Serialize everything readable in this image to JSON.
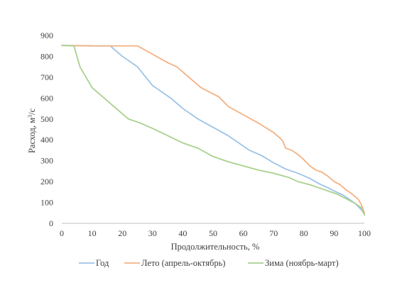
{
  "chart_data": {
    "type": "line",
    "title": "",
    "xlabel": "Продолжительность, %",
    "ylabel_main": "Расход, м",
    "ylabel_sup": "3",
    "ylabel_tail": "/с",
    "xlim": [
      0,
      100
    ],
    "ylim": [
      0,
      900
    ],
    "x_ticks": [
      0,
      10,
      20,
      30,
      40,
      50,
      60,
      70,
      80,
      90,
      100
    ],
    "y_ticks": [
      0,
      100,
      200,
      300,
      400,
      500,
      600,
      700,
      800,
      900
    ],
    "grid": false,
    "legend_position": "bottom",
    "series": [
      {
        "name": "Год",
        "color": "#9dc3e6",
        "points": [
          [
            0,
            852
          ],
          [
            5,
            851
          ],
          [
            10,
            850
          ],
          [
            16,
            850
          ],
          [
            20,
            800
          ],
          [
            25,
            750
          ],
          [
            30,
            660
          ],
          [
            32,
            640
          ],
          [
            36,
            600
          ],
          [
            40,
            550
          ],
          [
            45,
            500
          ],
          [
            50,
            460
          ],
          [
            55,
            420
          ],
          [
            60,
            370
          ],
          [
            62,
            350
          ],
          [
            66,
            325
          ],
          [
            70,
            290
          ],
          [
            74,
            260
          ],
          [
            78,
            240
          ],
          [
            82,
            215
          ],
          [
            85,
            190
          ],
          [
            88,
            170
          ],
          [
            90,
            155
          ],
          [
            93,
            135
          ],
          [
            95,
            115
          ],
          [
            97,
            95
          ],
          [
            99,
            65
          ],
          [
            100,
            45
          ]
        ]
      },
      {
        "name": "Лето (апрель-октябрь)",
        "color": "#f4b183",
        "points": [
          [
            0,
            852
          ],
          [
            10,
            850
          ],
          [
            20,
            850
          ],
          [
            25,
            850
          ],
          [
            30,
            810
          ],
          [
            35,
            770
          ],
          [
            38,
            750
          ],
          [
            42,
            700
          ],
          [
            46,
            650
          ],
          [
            52,
            605
          ],
          [
            55,
            560
          ],
          [
            60,
            520
          ],
          [
            65,
            480
          ],
          [
            70,
            435
          ],
          [
            72,
            410
          ],
          [
            73,
            395
          ],
          [
            74,
            360
          ],
          [
            76,
            350
          ],
          [
            78,
            330
          ],
          [
            80,
            305
          ],
          [
            82,
            275
          ],
          [
            84,
            255
          ],
          [
            86,
            245
          ],
          [
            88,
            225
          ],
          [
            90,
            200
          ],
          [
            92,
            185
          ],
          [
            94,
            160
          ],
          [
            96,
            140
          ],
          [
            98,
            115
          ],
          [
            99,
            90
          ],
          [
            100,
            50
          ]
        ]
      },
      {
        "name": "Зима (ноябрь-март)",
        "color": "#a9d18e",
        "points": [
          [
            0,
            852
          ],
          [
            4,
            850
          ],
          [
            6,
            750
          ],
          [
            10,
            650
          ],
          [
            14,
            600
          ],
          [
            18,
            550
          ],
          [
            22,
            500
          ],
          [
            26,
            480
          ],
          [
            30,
            455
          ],
          [
            35,
            420
          ],
          [
            40,
            385
          ],
          [
            45,
            360
          ],
          [
            50,
            320
          ],
          [
            55,
            295
          ],
          [
            60,
            275
          ],
          [
            65,
            255
          ],
          [
            70,
            240
          ],
          [
            75,
            220
          ],
          [
            78,
            200
          ],
          [
            82,
            185
          ],
          [
            85,
            170
          ],
          [
            88,
            155
          ],
          [
            91,
            140
          ],
          [
            93,
            125
          ],
          [
            95,
            110
          ],
          [
            97,
            95
          ],
          [
            99,
            75
          ],
          [
            100,
            40
          ]
        ]
      }
    ]
  }
}
